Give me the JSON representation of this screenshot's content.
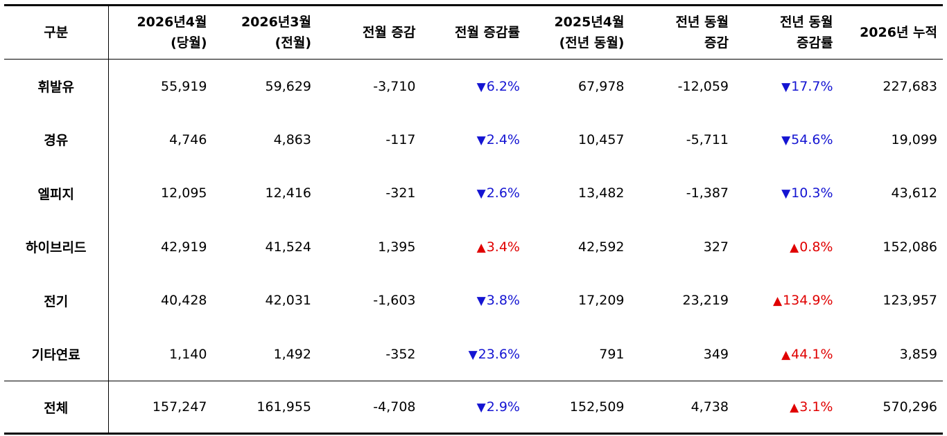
{
  "headers": [
    {
      "line1": "구분",
      "line2": ""
    },
    {
      "line1": "2026년4월",
      "line2": "(당월)"
    },
    {
      "line1": "2026년3월",
      "line2": "(전월)"
    },
    {
      "line1": "전월 증감",
      "line2": ""
    },
    {
      "line1": "전월 증감률",
      "line2": ""
    },
    {
      "line1": "2025년4월",
      "line2": "(전년 동월)"
    },
    {
      "line1": "전년 동월",
      "line2": "증감"
    },
    {
      "line1": "전년 동월",
      "line2": "증감률"
    },
    {
      "line1": "2026년 누적",
      "line2": ""
    }
  ],
  "rows": [
    {
      "label": "휘발유",
      "current": "55,919",
      "prev_month": "59,629",
      "mom_diff": "-3,710",
      "mom_dir": "down",
      "mom_arrow": "▼",
      "mom_rate": "6.2%",
      "last_year": "67,978",
      "yoy_diff": "-12,059",
      "yoy_dir": "down",
      "yoy_arrow": "▼",
      "yoy_rate": "17.7%",
      "ytd": "227,683"
    },
    {
      "label": "경유",
      "current": "4,746",
      "prev_month": "4,863",
      "mom_diff": "-117",
      "mom_dir": "down",
      "mom_arrow": "▼",
      "mom_rate": "2.4%",
      "last_year": "10,457",
      "yoy_diff": "-5,711",
      "yoy_dir": "down",
      "yoy_arrow": "▼",
      "yoy_rate": "54.6%",
      "ytd": "19,099"
    },
    {
      "label": "엘피지",
      "current": "12,095",
      "prev_month": "12,416",
      "mom_diff": "-321",
      "mom_dir": "down",
      "mom_arrow": "▼",
      "mom_rate": "2.6%",
      "last_year": "13,482",
      "yoy_diff": "-1,387",
      "yoy_dir": "down",
      "yoy_arrow": "▼",
      "yoy_rate": "10.3%",
      "ytd": "43,612"
    },
    {
      "label": "하이브리드",
      "current": "42,919",
      "prev_month": "41,524",
      "mom_diff": "1,395",
      "mom_dir": "up",
      "mom_arrow": "▲",
      "mom_rate": "3.4%",
      "last_year": "42,592",
      "yoy_diff": "327",
      "yoy_dir": "up",
      "yoy_arrow": "▲",
      "yoy_rate": "0.8%",
      "ytd": "152,086"
    },
    {
      "label": "전기",
      "current": "40,428",
      "prev_month": "42,031",
      "mom_diff": "-1,603",
      "mom_dir": "down",
      "mom_arrow": "▼",
      "mom_rate": "3.8%",
      "last_year": "17,209",
      "yoy_diff": "23,219",
      "yoy_dir": "up",
      "yoy_arrow": "▲",
      "yoy_rate": "134.9%",
      "ytd": "123,957"
    },
    {
      "label": "기타연료",
      "current": "1,140",
      "prev_month": "1,492",
      "mom_diff": "-352",
      "mom_dir": "down",
      "mom_arrow": "▼",
      "mom_rate": "23.6%",
      "last_year": "791",
      "yoy_diff": "349",
      "yoy_dir": "up",
      "yoy_arrow": "▲",
      "yoy_rate": "44.1%",
      "ytd": "3,859"
    }
  ],
  "total": {
    "label": "전체",
    "current": "157,247",
    "prev_month": "161,955",
    "mom_diff": "-4,708",
    "mom_dir": "down",
    "mom_arrow": "▼",
    "mom_rate": "2.9%",
    "last_year": "152,509",
    "yoy_diff": "4,738",
    "yoy_dir": "up",
    "yoy_arrow": "▲",
    "yoy_rate": "3.1%",
    "ytd": "570,296"
  },
  "colors": {
    "down": "#1414d2",
    "up": "#e00000",
    "rule": "#000000"
  }
}
